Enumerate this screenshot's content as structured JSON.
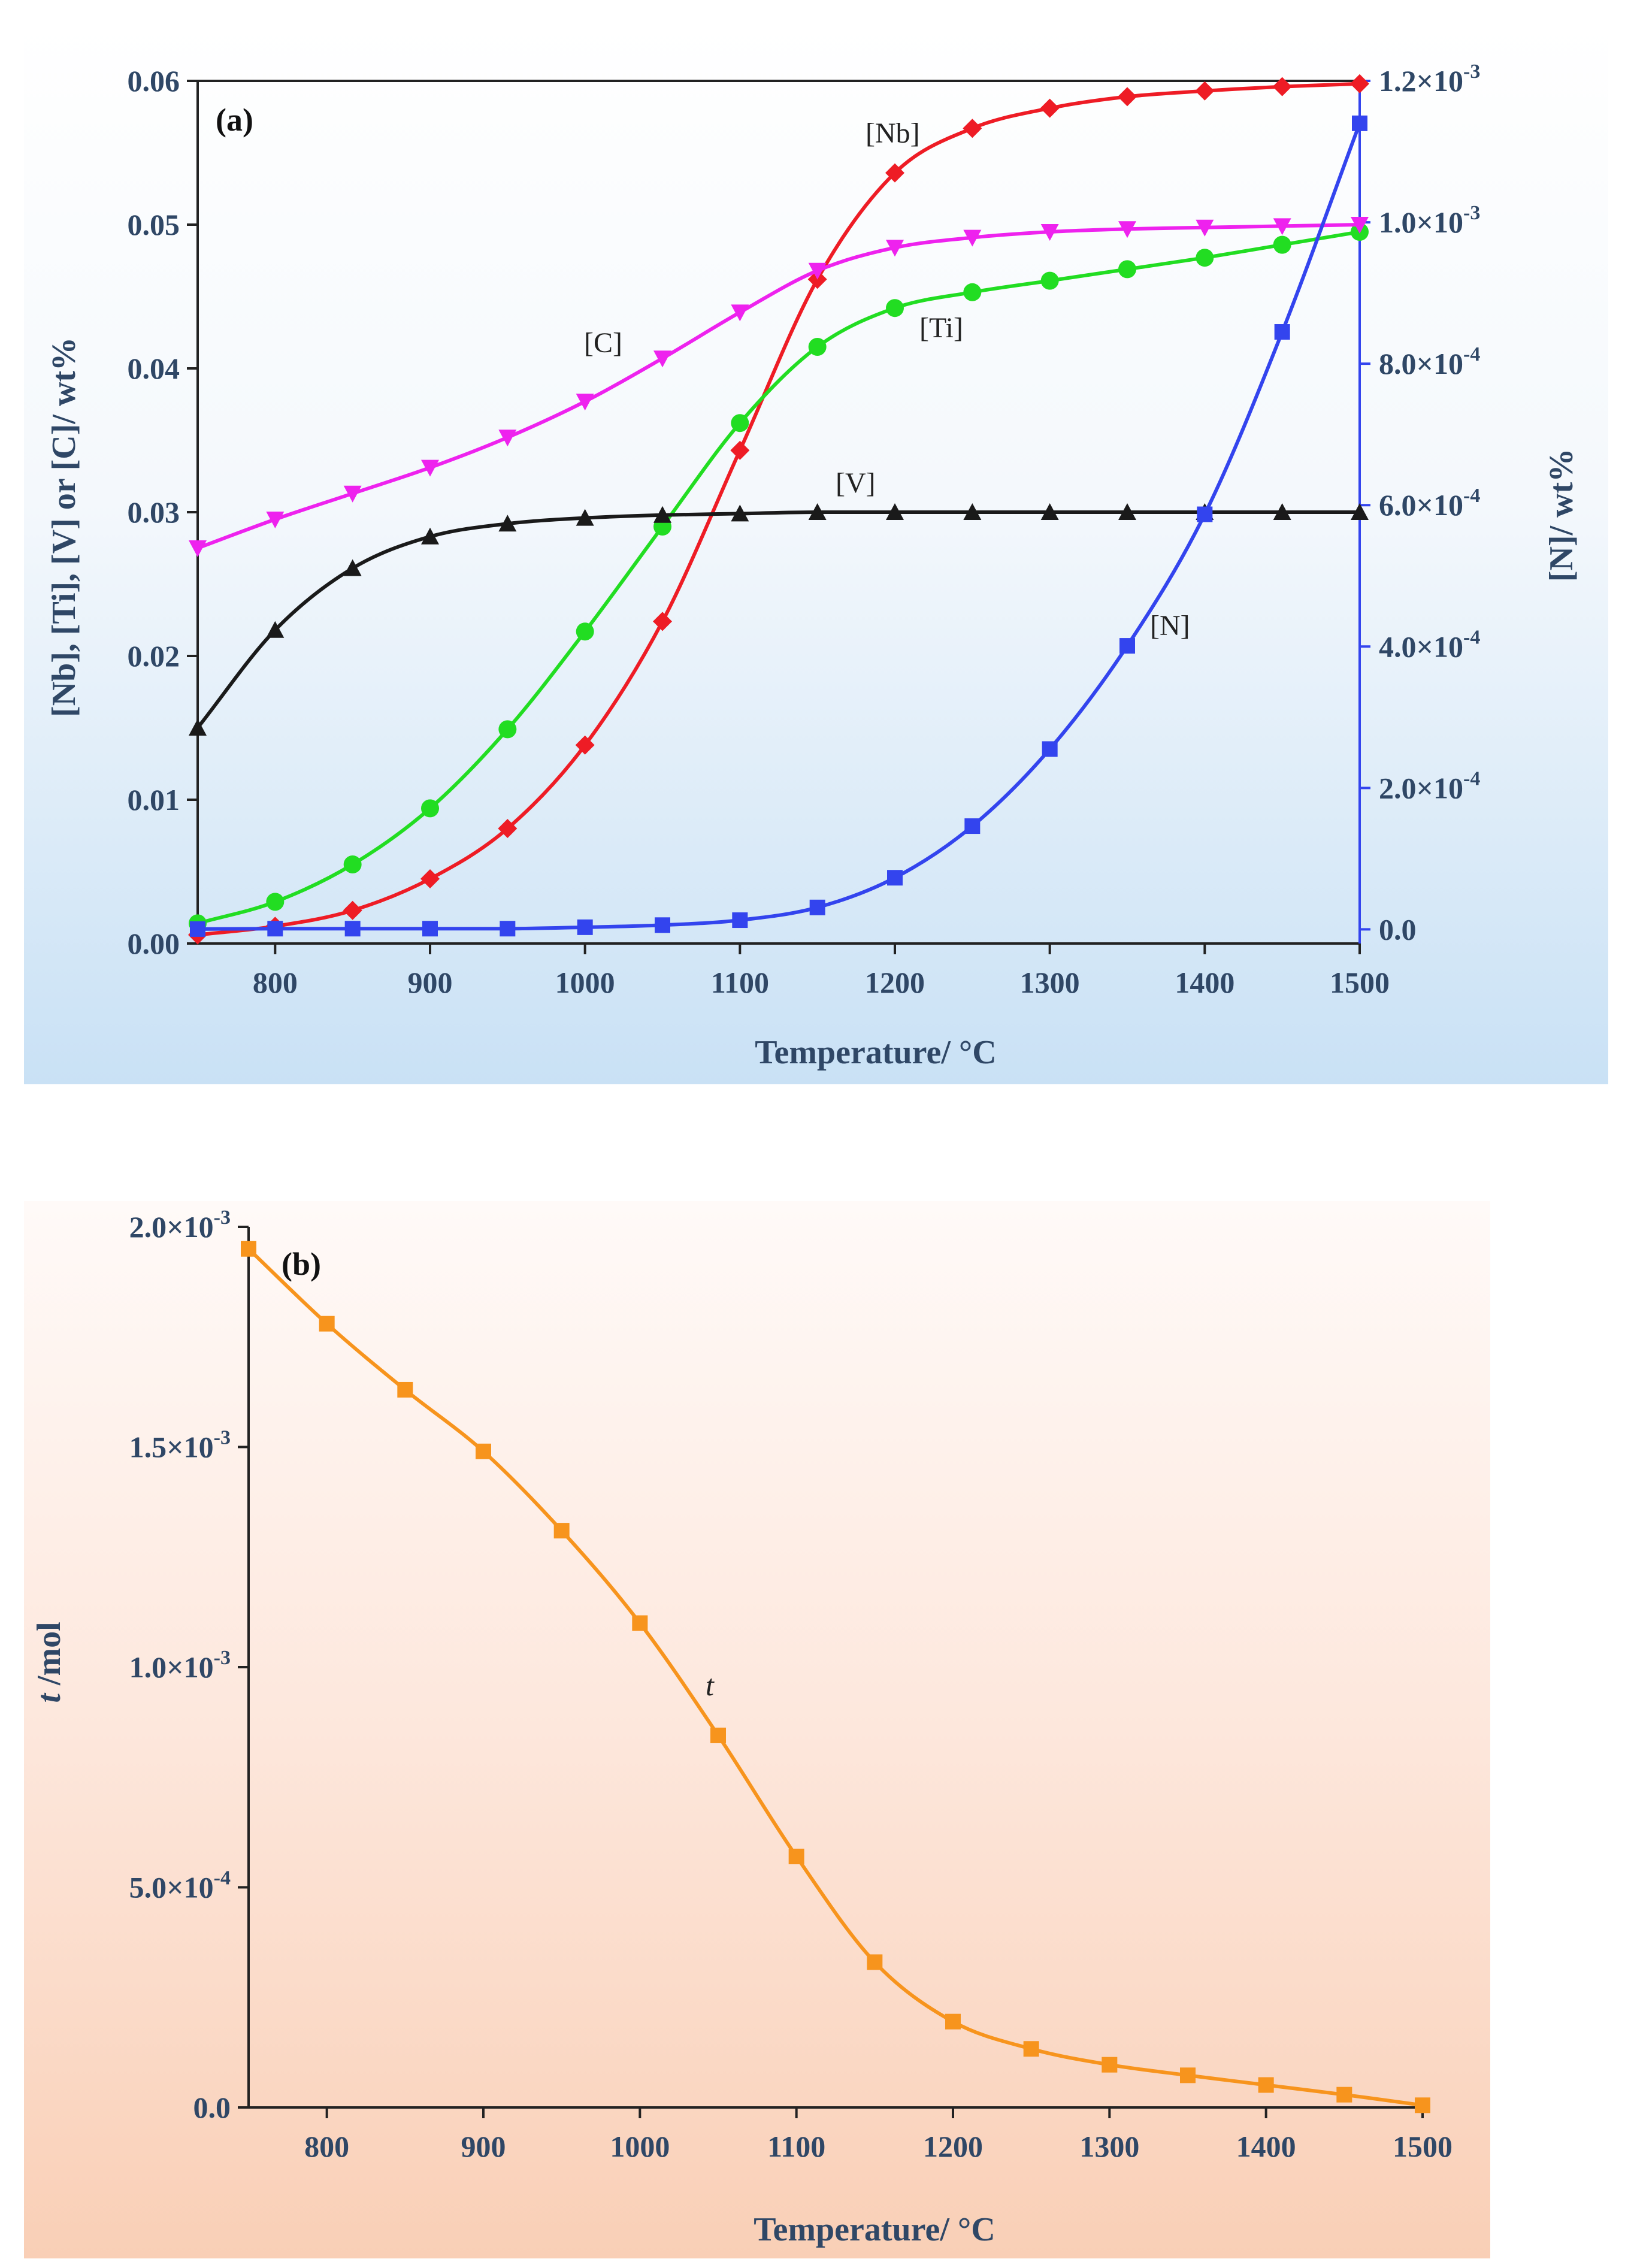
{
  "chart_data": [
    {
      "type": "line",
      "panel_label": "(a)",
      "x": [
        750,
        800,
        850,
        900,
        950,
        1000,
        1050,
        1100,
        1150,
        1200,
        1250,
        1300,
        1350,
        1400,
        1450,
        1500
      ],
      "xlim": [
        750,
        1500
      ],
      "xticks": [
        "800",
        "900",
        "1000",
        "1100",
        "1200",
        "1300",
        "1400",
        "1500"
      ],
      "xlabel": "Temperature/ °C",
      "ylabel": "[Nb], [Ti], [V] or [C]/ wt%",
      "ylim": [
        0,
        0.06
      ],
      "yticks": [
        "0.00",
        "0.01",
        "0.02",
        "0.03",
        "0.04",
        "0.05",
        "0.06"
      ],
      "ylabel_right": "[N]/ wt%",
      "ylim_right": [
        -2e-05,
        0.0012
      ],
      "yticks_right": [
        {
          "mant": "0.0",
          "exp": ""
        },
        {
          "mant": "2.0×10",
          "exp": "-4"
        },
        {
          "mant": "4.0×10",
          "exp": "-4"
        },
        {
          "mant": "6.0×10",
          "exp": "-4"
        },
        {
          "mant": "8.0×10",
          "exp": "-4"
        },
        {
          "mant": "1.0×10",
          "exp": "-3"
        },
        {
          "mant": "1.2×10",
          "exp": "-3"
        }
      ],
      "series": [
        {
          "name": "[Nb]",
          "axis": "left",
          "marker": "diamond",
          "color": "#ee1c25",
          "values": [
            0.0006,
            0.0012,
            0.0023,
            0.0045,
            0.008,
            0.0138,
            0.0224,
            0.0343,
            0.0462,
            0.0536,
            0.0567,
            0.0581,
            0.0589,
            0.0593,
            0.0596,
            0.0598
          ]
        },
        {
          "name": "[Ti]",
          "axis": "left",
          "marker": "circle",
          "color": "#22dd22",
          "values": [
            0.0014,
            0.0029,
            0.0055,
            0.0094,
            0.0149,
            0.0217,
            0.029,
            0.0362,
            0.0415,
            0.0442,
            0.0453,
            0.0461,
            0.0469,
            0.0477,
            0.0486,
            0.0495
          ]
        },
        {
          "name": "[V]",
          "axis": "left",
          "marker": "triangle-up",
          "color": "#1a1a1a",
          "values": [
            0.015,
            0.0218,
            0.0261,
            0.0283,
            0.0292,
            0.0296,
            0.0298,
            0.0299,
            0.03,
            0.03,
            0.03,
            0.03,
            0.03,
            0.03,
            0.03,
            0.03
          ]
        },
        {
          "name": "[C]",
          "axis": "left",
          "marker": "triangle-down",
          "color": "#ee22ee",
          "values": [
            0.0275,
            0.0295,
            0.0313,
            0.0331,
            0.0352,
            0.0377,
            0.0407,
            0.0439,
            0.0468,
            0.0484,
            0.0491,
            0.0495,
            0.0497,
            0.0498,
            0.0499,
            0.05
          ]
        },
        {
          "name": "[N]",
          "axis": "right",
          "marker": "square",
          "color": "#3344ee",
          "values": [
            4e-07,
            1e-06,
            1e-06,
            1e-06,
            1e-06,
            3e-06,
            6e-06,
            1.3e-05,
            3.1e-05,
            7.3e-05,
            0.000146,
            0.000255,
            0.000401,
            0.000587,
            0.000845,
            0.00114
          ]
        }
      ],
      "annotations": [
        "[Nb]",
        "[Ti]",
        "[V]",
        "[C]",
        "[N]"
      ]
    },
    {
      "type": "line",
      "panel_label": "(b)",
      "x": [
        750,
        800,
        850,
        900,
        950,
        1000,
        1050,
        1100,
        1150,
        1200,
        1250,
        1300,
        1350,
        1400,
        1450,
        1500
      ],
      "xlim": [
        750,
        1500
      ],
      "xticks": [
        "800",
        "900",
        "1000",
        "1100",
        "1200",
        "1300",
        "1400",
        "1500"
      ],
      "xlabel": "Temperature/ °C",
      "ylabel_italic": "t",
      "ylabel_rest": " /mol",
      "ylim": [
        0,
        0.002
      ],
      "yticks": [
        {
          "mant": "0.0",
          "exp": ""
        },
        {
          "mant": "5.0×10",
          "exp": "-4"
        },
        {
          "mant": "1.0×10",
          "exp": "-3"
        },
        {
          "mant": "1.5×10",
          "exp": "-3"
        },
        {
          "mant": "2.0×10",
          "exp": "-3"
        }
      ],
      "series": [
        {
          "name": "t",
          "marker": "square",
          "color": "#f7941d",
          "values": [
            0.00195,
            0.00178,
            0.00163,
            0.00149,
            0.00131,
            0.0011,
            0.000845,
            0.00057,
            0.00033,
            0.000195,
            0.000133,
            9.7e-05,
            7.3e-05,
            5.1e-05,
            2.9e-05,
            5e-06
          ]
        }
      ],
      "annotations": [
        "t"
      ]
    }
  ]
}
